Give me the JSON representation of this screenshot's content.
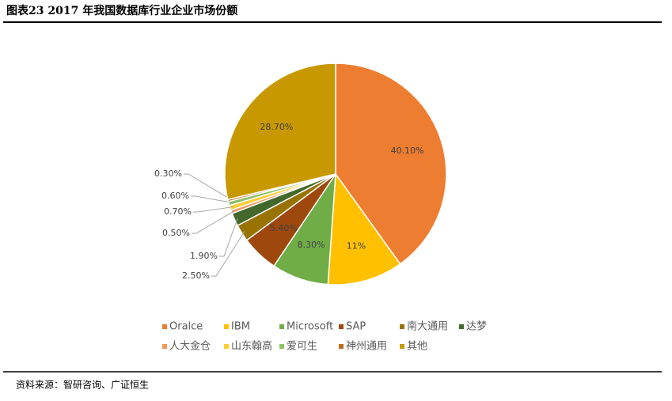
{
  "chart_data": {
    "type": "pie",
    "title": "图表23 2017 年我国数据库行业企业市场份额",
    "source": "资料来源：智研咨询、广证恒生",
    "categories": [
      "Oralce",
      "IBM",
      "Microsoft",
      "SAP",
      "南大通用",
      "达梦",
      "人大金仓",
      "山东翰高",
      "爱可生",
      "神州通用",
      "其他"
    ],
    "values": [
      40.1,
      11,
      8.3,
      5.4,
      2.5,
      1.9,
      0.5,
      0.7,
      0.6,
      0.3,
      28.7
    ],
    "value_labels": [
      "40.10%",
      "11%",
      "8.30%",
      "5.40%",
      "2.50%",
      "1.90%",
      "0.50%",
      "0.70%",
      "0.60%",
      "0.30%",
      "28.70%"
    ],
    "colors": [
      "#ED7D31",
      "#FFC000",
      "#70AD47",
      "#9E480E",
      "#997300",
      "#43682B",
      "#F1975A",
      "#FFCD33",
      "#8CC168",
      "#BE6A1E",
      "#C89800"
    ],
    "legend": "bottom"
  }
}
